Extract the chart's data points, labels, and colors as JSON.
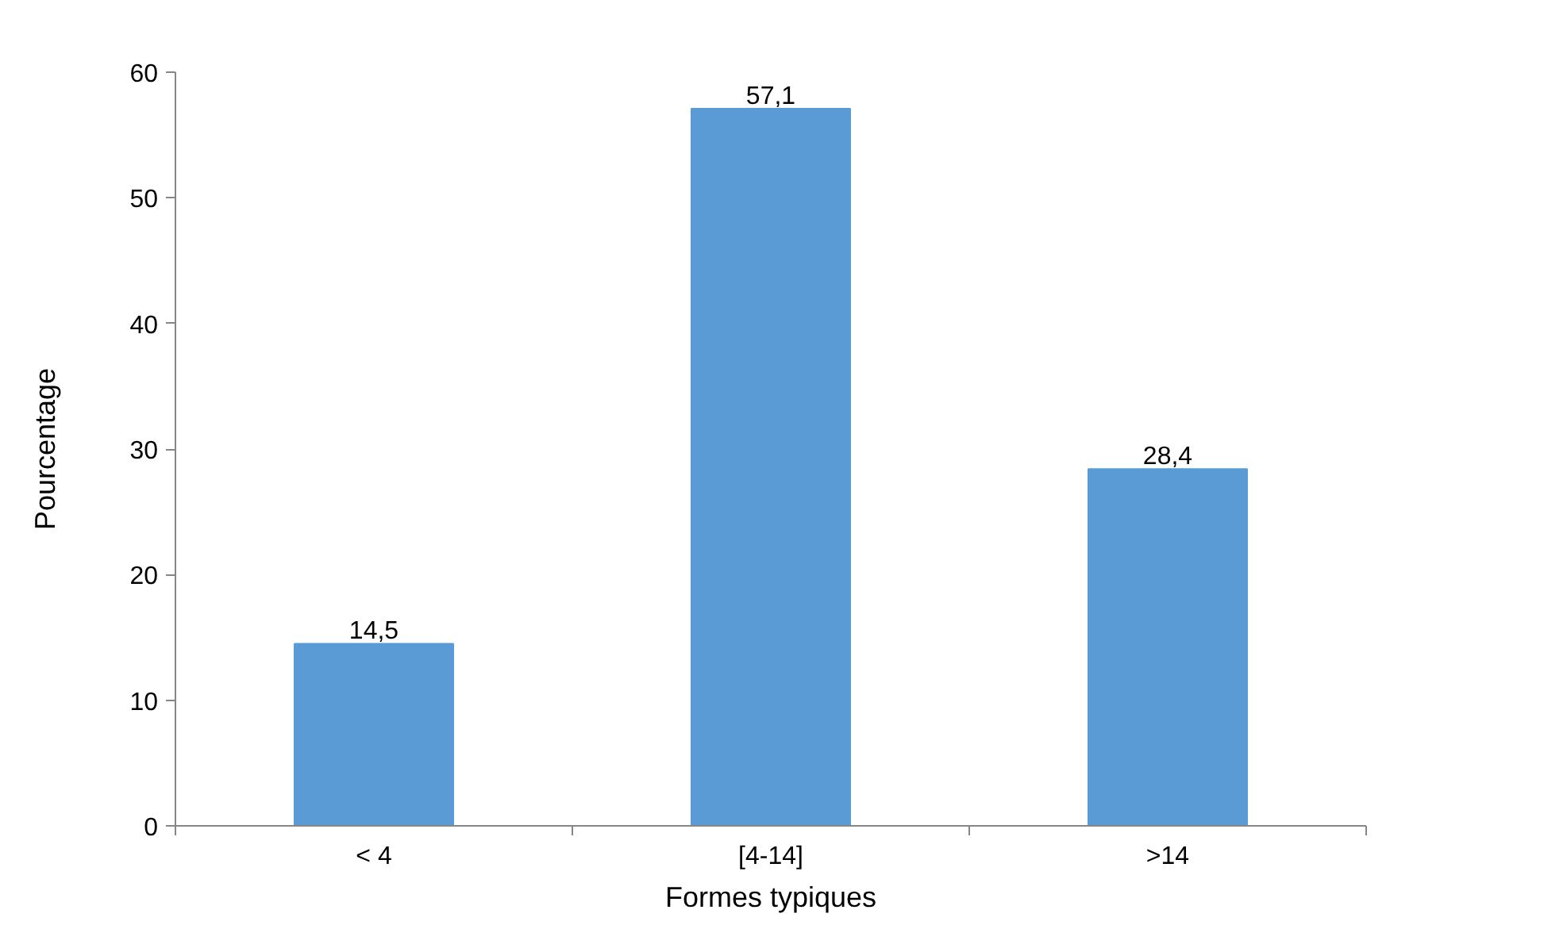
{
  "chart_data": {
    "type": "bar",
    "xlabel": "Formes typiques",
    "ylabel": "Pourcentage",
    "categories": [
      "< 4",
      "[4-14]",
      ">14"
    ],
    "values": [
      14.5,
      57.1,
      28.4
    ],
    "value_labels": [
      "14,5",
      "57,1",
      "28,4"
    ],
    "color": "#5b9bd5",
    "ylim": [
      0,
      60
    ],
    "yticks": [
      0,
      10,
      20,
      30,
      40,
      50,
      60
    ],
    "grid": false,
    "legend": false
  }
}
